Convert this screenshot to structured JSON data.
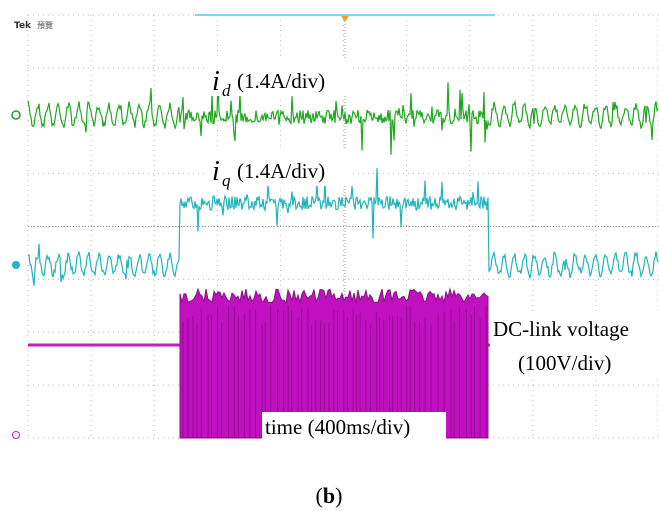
{
  "scope": {
    "brand": "Tek",
    "mode": "預覽"
  },
  "traces": [
    {
      "symbol": "i",
      "subscript": "d",
      "scale": "(1.4A/div)"
    },
    {
      "symbol": "i",
      "subscript": "q",
      "scale": "(1.4A/div)"
    }
  ],
  "voltage_label": {
    "name": "DC-link voltage",
    "scale": "(100V/div)"
  },
  "time_label": "time (400ms/div)",
  "caption": {
    "open": "(",
    "letter": "b",
    "close": ")"
  }
}
